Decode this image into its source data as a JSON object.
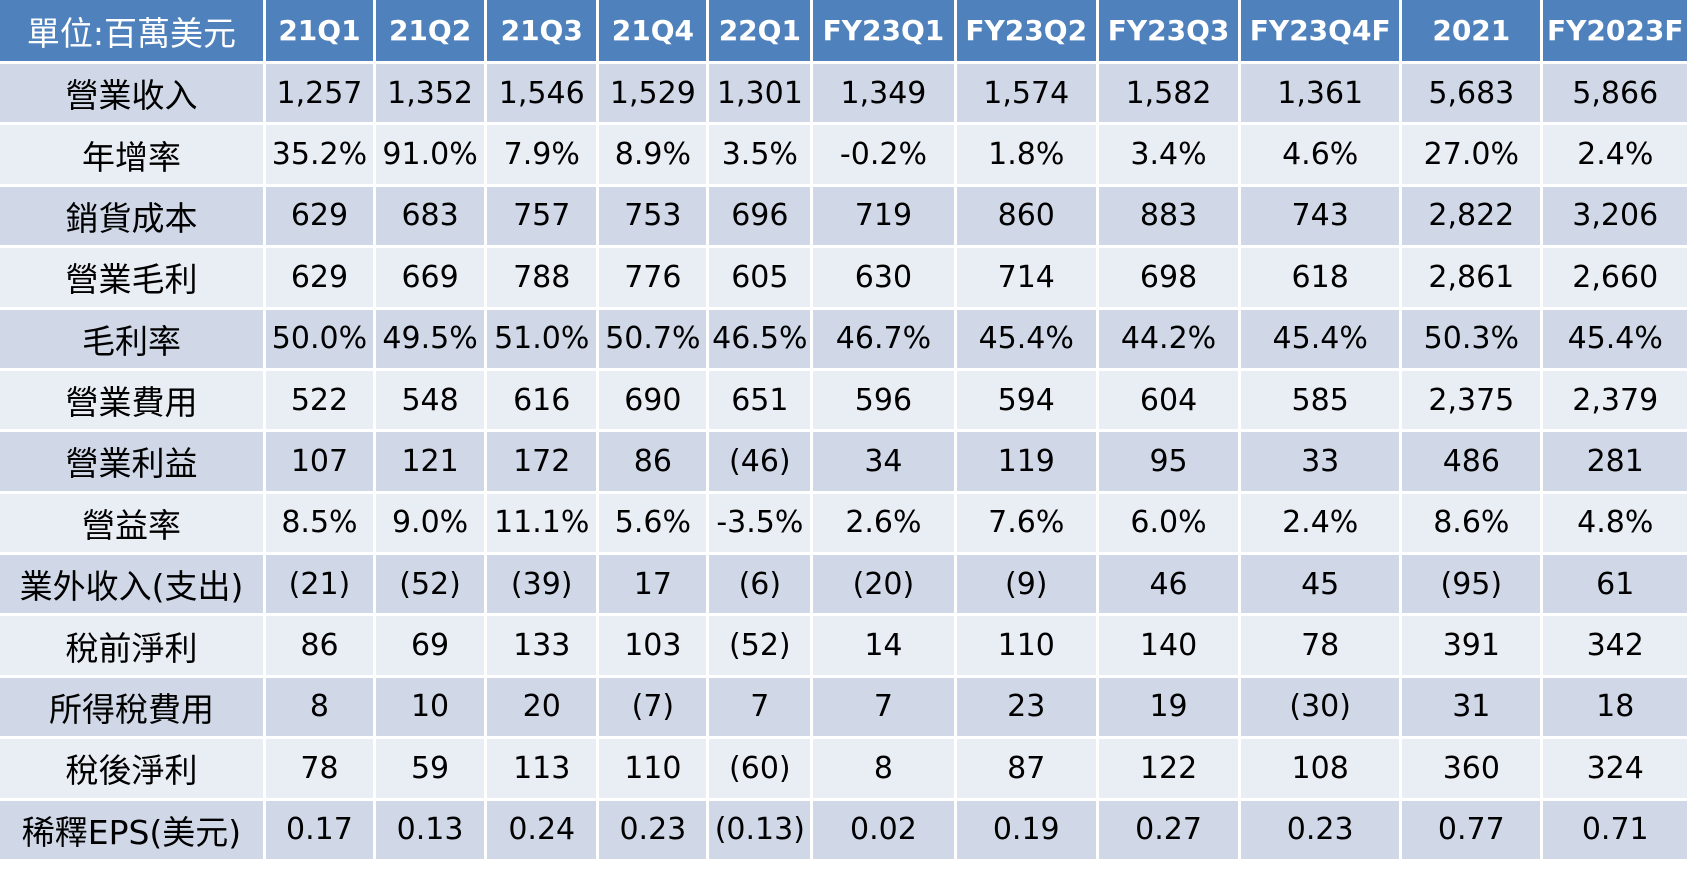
{
  "table": {
    "unit_label": "單位:百萬美元",
    "columns": [
      "21Q1",
      "21Q2",
      "21Q3",
      "21Q4",
      "22Q1",
      "FY23Q1",
      "FY23Q2",
      "FY23Q3",
      "FY23Q4F",
      "2021",
      "FY2023F"
    ],
    "rows": [
      {
        "label": "營業收入",
        "values": [
          "1,257",
          "1,352",
          "1,546",
          "1,529",
          "1,301",
          "1,349",
          "1,574",
          "1,582",
          "1,361",
          "5,683",
          "5,866"
        ]
      },
      {
        "label": "年增率",
        "values": [
          "35.2%",
          "91.0%",
          "7.9%",
          "8.9%",
          "3.5%",
          "-0.2%",
          "1.8%",
          "3.4%",
          "4.6%",
          "27.0%",
          "2.4%"
        ]
      },
      {
        "label": "銷貨成本",
        "values": [
          "629",
          "683",
          "757",
          "753",
          "696",
          "719",
          "860",
          "883",
          "743",
          "2,822",
          "3,206"
        ]
      },
      {
        "label": "營業毛利",
        "values": [
          "629",
          "669",
          "788",
          "776",
          "605",
          "630",
          "714",
          "698",
          "618",
          "2,861",
          "2,660"
        ]
      },
      {
        "label": "毛利率",
        "values": [
          "50.0%",
          "49.5%",
          "51.0%",
          "50.7%",
          "46.5%",
          "46.7%",
          "45.4%",
          "44.2%",
          "45.4%",
          "50.3%",
          "45.4%"
        ]
      },
      {
        "label": "營業費用",
        "values": [
          "522",
          "548",
          "616",
          "690",
          "651",
          "596",
          "594",
          "604",
          "585",
          "2,375",
          "2,379"
        ]
      },
      {
        "label": "營業利益",
        "values": [
          "107",
          "121",
          "172",
          "86",
          "(46)",
          "34",
          "119",
          "95",
          "33",
          "486",
          "281"
        ]
      },
      {
        "label": "營益率",
        "values": [
          "8.5%",
          "9.0%",
          "11.1%",
          "5.6%",
          "-3.5%",
          "2.6%",
          "7.6%",
          "6.0%",
          "2.4%",
          "8.6%",
          "4.8%"
        ]
      },
      {
        "label": "業外收入(支出)",
        "values": [
          "(21)",
          "(52)",
          "(39)",
          "17",
          "(6)",
          "(20)",
          "(9)",
          "46",
          "45",
          "(95)",
          "61"
        ]
      },
      {
        "label": "稅前淨利",
        "values": [
          "86",
          "69",
          "133",
          "103",
          "(52)",
          "14",
          "110",
          "140",
          "78",
          "391",
          "342"
        ]
      },
      {
        "label": "所得稅費用",
        "values": [
          "8",
          "10",
          "20",
          "(7)",
          "7",
          "7",
          "23",
          "19",
          "(30)",
          "31",
          "18"
        ]
      },
      {
        "label": "稅後淨利",
        "values": [
          "78",
          "59",
          "113",
          "110",
          "(60)",
          "8",
          "87",
          "122",
          "108",
          "360",
          "324"
        ]
      },
      {
        "label": "稀釋EPS(美元)",
        "values": [
          "0.17",
          "0.13",
          "0.24",
          "0.23",
          "(0.13)",
          "0.02",
          "0.19",
          "0.27",
          "0.23",
          "0.77",
          "0.71"
        ]
      }
    ]
  },
  "colors": {
    "header_bg": "#4f81bd",
    "header_text": "#ffffff",
    "row_odd_bg": "#d0d8e8",
    "row_even_bg": "#e9edf4"
  }
}
